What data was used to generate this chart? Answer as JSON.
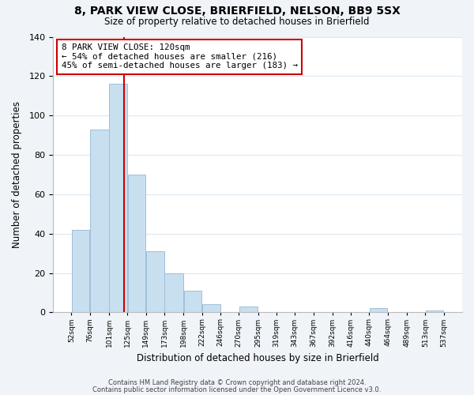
{
  "title": "8, PARK VIEW CLOSE, BRIERFIELD, NELSON, BB9 5SX",
  "subtitle": "Size of property relative to detached houses in Brierfield",
  "xlabel": "Distribution of detached houses by size in Brierfield",
  "ylabel": "Number of detached properties",
  "bar_color": "#c8dff0",
  "bar_edge_color": "#9fbfda",
  "bar_left_edges": [
    52,
    76,
    101,
    125,
    149,
    173,
    198,
    222,
    246,
    270,
    295,
    319,
    343,
    367,
    392,
    416,
    440,
    464,
    489,
    513
  ],
  "bar_widths": [
    24,
    25,
    24,
    24,
    24,
    25,
    24,
    24,
    24,
    25,
    24,
    24,
    24,
    25,
    25,
    24,
    24,
    25,
    24,
    24
  ],
  "bar_heights": [
    42,
    93,
    116,
    70,
    31,
    20,
    11,
    4,
    0,
    3,
    0,
    0,
    0,
    0,
    0,
    0,
    2,
    0,
    0,
    1
  ],
  "xtick_labels": [
    "52sqm",
    "76sqm",
    "101sqm",
    "125sqm",
    "149sqm",
    "173sqm",
    "198sqm",
    "222sqm",
    "246sqm",
    "270sqm",
    "295sqm",
    "319sqm",
    "343sqm",
    "367sqm",
    "392sqm",
    "416sqm",
    "440sqm",
    "464sqm",
    "489sqm",
    "513sqm",
    "537sqm"
  ],
  "xtick_positions": [
    52,
    76,
    101,
    125,
    149,
    173,
    198,
    222,
    246,
    270,
    295,
    319,
    343,
    367,
    392,
    416,
    440,
    464,
    489,
    513,
    537
  ],
  "ylim": [
    0,
    140
  ],
  "xlim": [
    28,
    561
  ],
  "marker_x": 120,
  "marker_color": "#cc0000",
  "annotation_text": "8 PARK VIEW CLOSE: 120sqm\n← 54% of detached houses are smaller (216)\n45% of semi-detached houses are larger (183) →",
  "footer_line1": "Contains HM Land Registry data © Crown copyright and database right 2024.",
  "footer_line2": "Contains public sector information licensed under the Open Government Licence v3.0.",
  "background_color": "#f0f4f8",
  "plot_bg_color": "#ffffff",
  "grid_color": "#dde8f0"
}
